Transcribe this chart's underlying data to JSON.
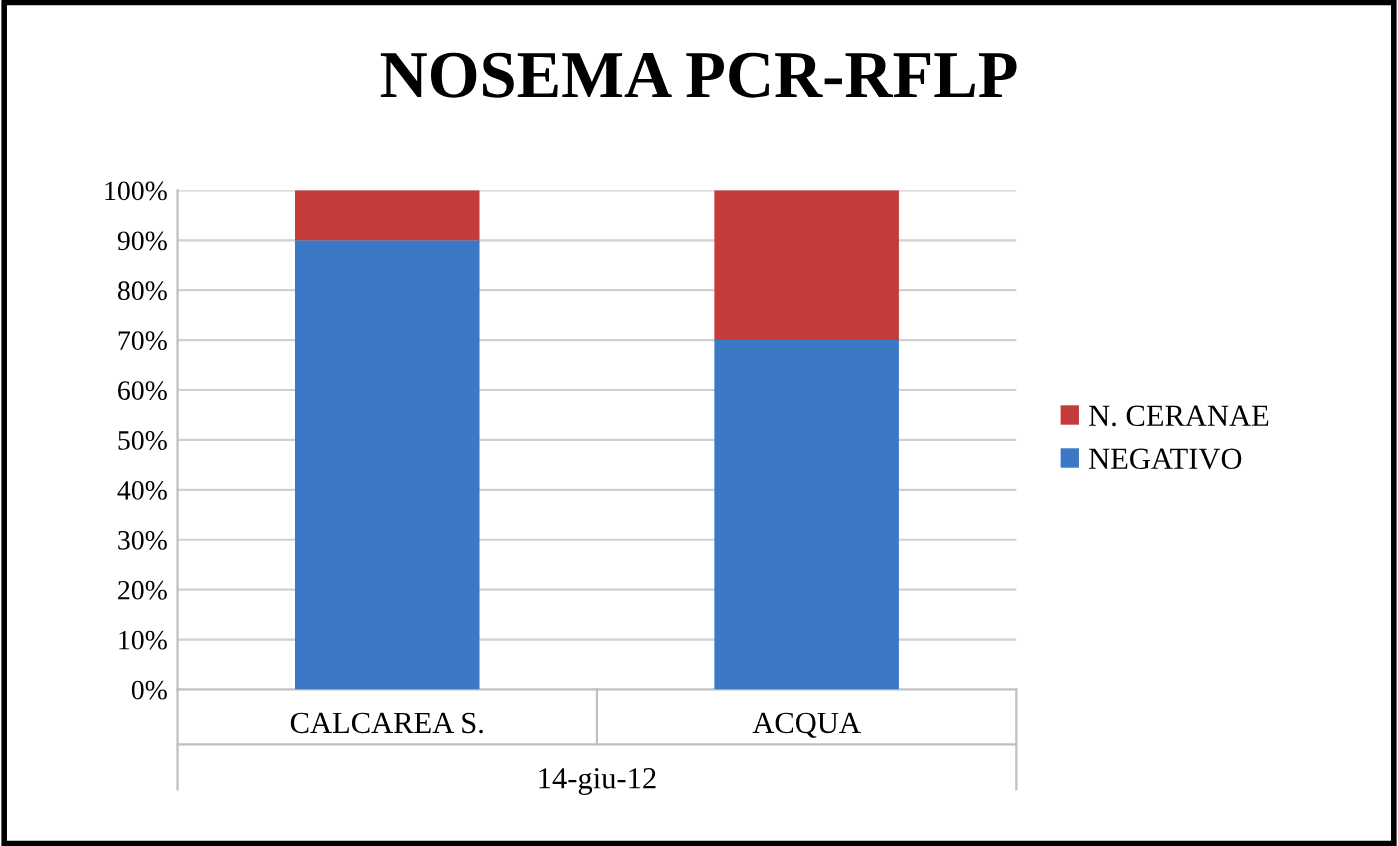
{
  "chart_data": {
    "type": "bar",
    "title": "NOSEMA PCR-RFLP",
    "stacked": true,
    "categories": [
      "CALCAREA S.",
      "ACQUA"
    ],
    "xlabel": "14-giu-12",
    "series": [
      {
        "name": "NEGATIVO",
        "color": "#3b78c6",
        "values": [
          90,
          70
        ]
      },
      {
        "name": "N. CERANAE",
        "color": "#c43c39",
        "values": [
          10,
          30
        ]
      }
    ],
    "ylim": [
      0,
      100
    ],
    "yticks": [
      {
        "value": 0,
        "label": "0%"
      },
      {
        "value": 10,
        "label": "10%"
      },
      {
        "value": 20,
        "label": "20%"
      },
      {
        "value": 30,
        "label": "30%"
      },
      {
        "value": 40,
        "label": "40%"
      },
      {
        "value": 50,
        "label": "50%"
      },
      {
        "value": 60,
        "label": "60%"
      },
      {
        "value": 70,
        "label": "70%"
      },
      {
        "value": 80,
        "label": "80%"
      },
      {
        "value": 90,
        "label": "90%"
      },
      {
        "value": 100,
        "label": "100%"
      }
    ],
    "grid": "y",
    "legend": "right"
  }
}
